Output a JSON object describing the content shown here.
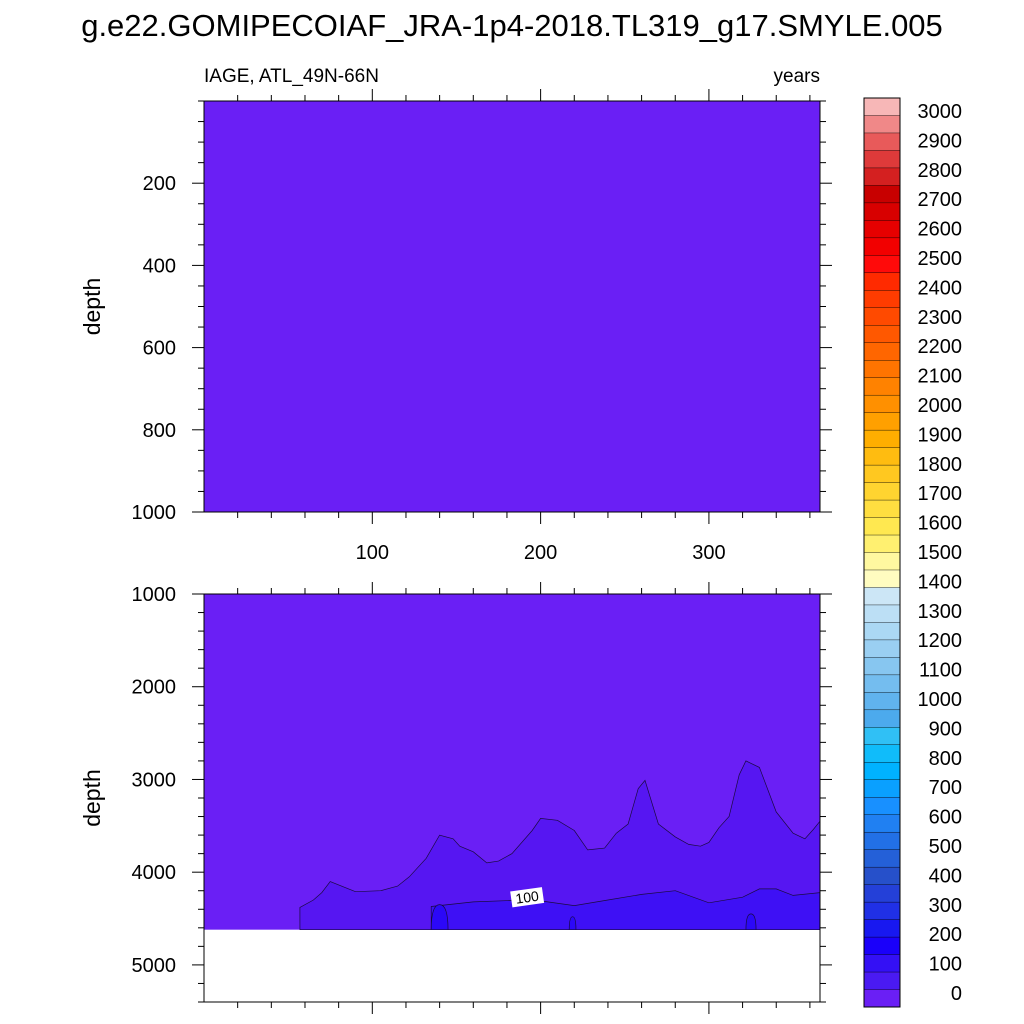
{
  "title": "g.e22.GOMIPECOIAF_JRA-1p4-2018.TL319_g17.SMYLE.005",
  "subtitle_left": "IAGE, ATL_49N-66N",
  "subtitle_right": "years",
  "chart_data": [
    {
      "type": "heatmap",
      "panel": "upper",
      "variable": "IAGE",
      "region": "ATL_49N-66N",
      "units": "years",
      "xlabel": "",
      "ylabel": "depth",
      "xlim": [
        0,
        366
      ],
      "ylim": [
        1000,
        0
      ],
      "x_ticks": [
        100,
        200,
        300
      ],
      "y_ticks": [
        200,
        400,
        600,
        800,
        1000
      ],
      "fill_value_range": [
        0,
        100
      ],
      "note_color": "#6A1FF5"
    },
    {
      "type": "heatmap",
      "panel": "lower",
      "variable": "IAGE",
      "region": "ATL_49N-66N",
      "units": "years",
      "xlabel": "",
      "ylabel": "depth",
      "xlim": [
        0,
        366
      ],
      "ylim": [
        5400,
        1000
      ],
      "x_ticks": [
        100,
        200,
        300
      ],
      "y_ticks": [
        1000,
        2000,
        3000,
        4000,
        5000
      ],
      "data_bottom_depth": 4620,
      "contour_labels": [
        {
          "text": "100",
          "x": 192,
          "depth": 4270
        }
      ],
      "contour_50_depth_profile": {
        "x": [
          57,
          65,
          70,
          75,
          90,
          105,
          115,
          122,
          132,
          140,
          148,
          152,
          160,
          168,
          175,
          183,
          195,
          200,
          210,
          220,
          228,
          238,
          245,
          252,
          258,
          262,
          270,
          280,
          288,
          295,
          300,
          306,
          312,
          318,
          322,
          330,
          340,
          350,
          357,
          362,
          366
        ],
        "depth": [
          4380,
          4300,
          4220,
          4100,
          4210,
          4200,
          4150,
          4050,
          3850,
          3600,
          3640,
          3720,
          3780,
          3900,
          3880,
          3800,
          3550,
          3420,
          3440,
          3550,
          3760,
          3740,
          3580,
          3480,
          3100,
          3010,
          3480,
          3620,
          3700,
          3720,
          3680,
          3520,
          3400,
          2950,
          2800,
          2870,
          3350,
          3580,
          3640,
          3540,
          3450
        ]
      },
      "contour_100_depth_profile": {
        "x": [
          135,
          160,
          190,
          200,
          220,
          240,
          260,
          280,
          300,
          320,
          330,
          340,
          350,
          366
        ],
        "depth": [
          4370,
          4320,
          4300,
          4310,
          4360,
          4300,
          4240,
          4200,
          4330,
          4270,
          4180,
          4180,
          4250,
          4220
        ]
      },
      "contour_150_spikes": [
        {
          "x_range": [
            135,
            145
          ],
          "peak_depth": 4350
        },
        {
          "x_range": [
            217,
            221
          ],
          "peak_depth": 4480
        },
        {
          "x_range": [
            322,
            328
          ],
          "peak_depth": 4450
        }
      ]
    }
  ],
  "colorbar": {
    "labels": [
      "3000",
      "2900",
      "2800",
      "2700",
      "2600",
      "2500",
      "2400",
      "2300",
      "2200",
      "2100",
      "2000",
      "1900",
      "1800",
      "1700",
      "1600",
      "1500",
      "1400",
      "1300",
      "1200",
      "1100",
      "1000",
      "900",
      "800",
      "700",
      "600",
      "500",
      "400",
      "300",
      "200",
      "100",
      "0"
    ],
    "colors": [
      "#F7B7B7",
      "#F08888",
      "#E85A5A",
      "#DE3A3A",
      "#D42020",
      "#C80000",
      "#D80000",
      "#E60000",
      "#F20000",
      "#FF0A0A",
      "#FF2A00",
      "#FF3C00",
      "#FF4A00",
      "#FF5800",
      "#FF6600",
      "#FF7400",
      "#FF8200",
      "#FF9000",
      "#FFA000",
      "#FFAE00",
      "#FFBC10",
      "#FFC820",
      "#FFD430",
      "#FFDE40",
      "#FFE850",
      "#FFF070",
      "#FFF8A0",
      "#FFFCC0",
      "#CCE6F6",
      "#BCDFF5",
      "#ABD8F4",
      "#9ACFF2",
      "#87C6F0",
      "#74BDEF",
      "#60B3EE",
      "#4CAAED",
      "#30C0F5",
      "#10BCFA",
      "#00B2FF",
      "#0AA0FF",
      "#1890FF",
      "#2080F2",
      "#2270E6",
      "#2460D8",
      "#2650CA",
      "#2440D8",
      "#2030E6",
      "#1818F0",
      "#1A00FA",
      "#3410F5",
      "#4A1AF2",
      "#6A1FF5"
    ]
  }
}
